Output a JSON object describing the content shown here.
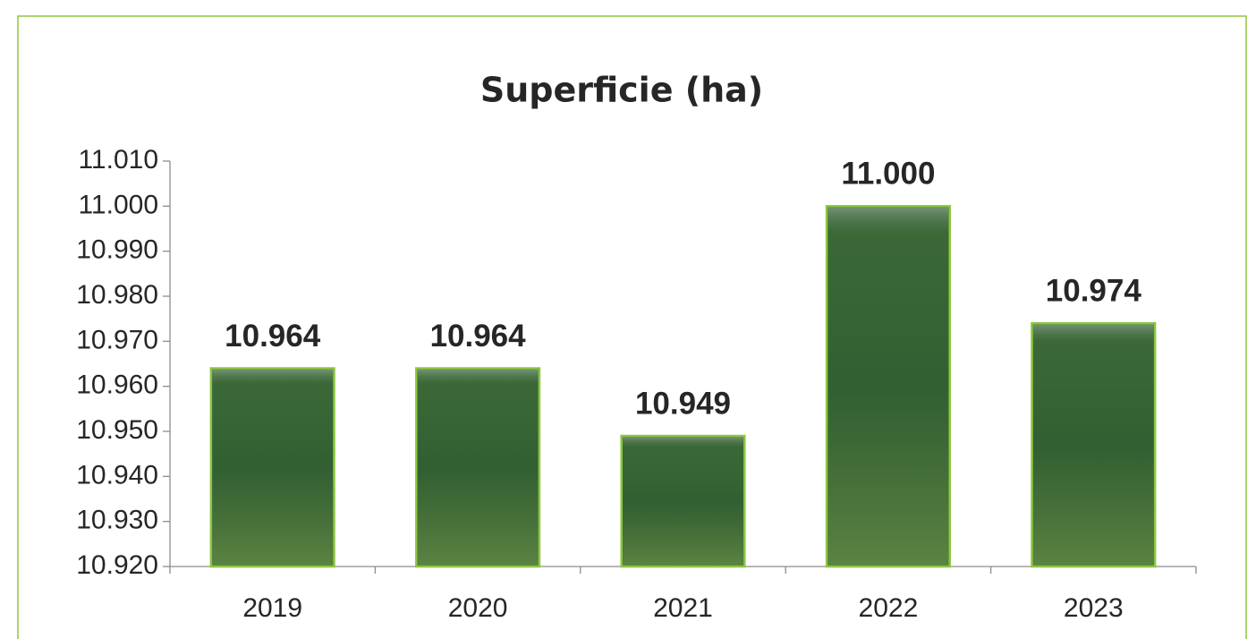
{
  "chart_data": {
    "type": "bar",
    "title": "Superficie (ha)",
    "categories": [
      "2019",
      "2020",
      "2021",
      "2022",
      "2023"
    ],
    "values": [
      10964,
      10964,
      10949,
      11000,
      10974
    ],
    "value_labels": [
      "10.964",
      "10.964",
      "10.949",
      "11.000",
      "10.974"
    ],
    "color": "#3d6b36",
    "ylim": [
      10920,
      11010
    ],
    "yticks": [
      {
        "value": 10920,
        "label": "10.920"
      },
      {
        "value": 10930,
        "label": "10.930"
      },
      {
        "value": 10940,
        "label": "10.940"
      },
      {
        "value": 10950,
        "label": "10.950"
      },
      {
        "value": 10960,
        "label": "10.960"
      },
      {
        "value": 10970,
        "label": "10.970"
      },
      {
        "value": 10980,
        "label": "10.980"
      },
      {
        "value": 10990,
        "label": "10.990"
      },
      {
        "value": 11000,
        "label": "11.000"
      },
      {
        "value": 11010,
        "label": "11.010"
      }
    ],
    "grid": false
  }
}
